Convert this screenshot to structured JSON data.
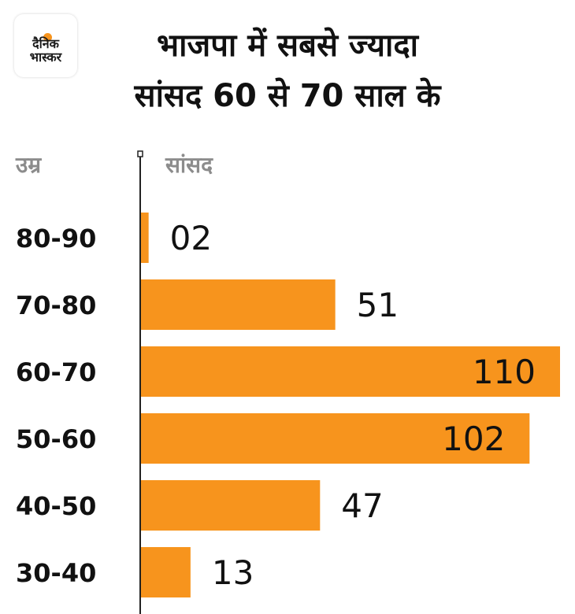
{
  "brand": {
    "line1": "दैनिक",
    "line2": "भास्कर",
    "accent": "#f7941d"
  },
  "header": {
    "title_line1": "भाजपा में सबसे ज्यादा",
    "title_line2": "सांसद 60 से 70 साल के"
  },
  "columns": {
    "category_header": "उम्र",
    "value_header": "सांसद"
  },
  "chart_data": {
    "type": "bar",
    "orientation": "horizontal",
    "categories": [
      "80-90",
      "70-80",
      "60-70",
      "50-60",
      "40-50",
      "30-40"
    ],
    "values": [
      2,
      51,
      110,
      102,
      47,
      13
    ],
    "value_labels": [
      "02",
      "51",
      "110",
      "102",
      "47",
      "13"
    ],
    "bar_color": "#f7941d",
    "label_color": "#111111",
    "xlim": [
      0,
      110
    ],
    "grid": false,
    "legend": "none"
  }
}
